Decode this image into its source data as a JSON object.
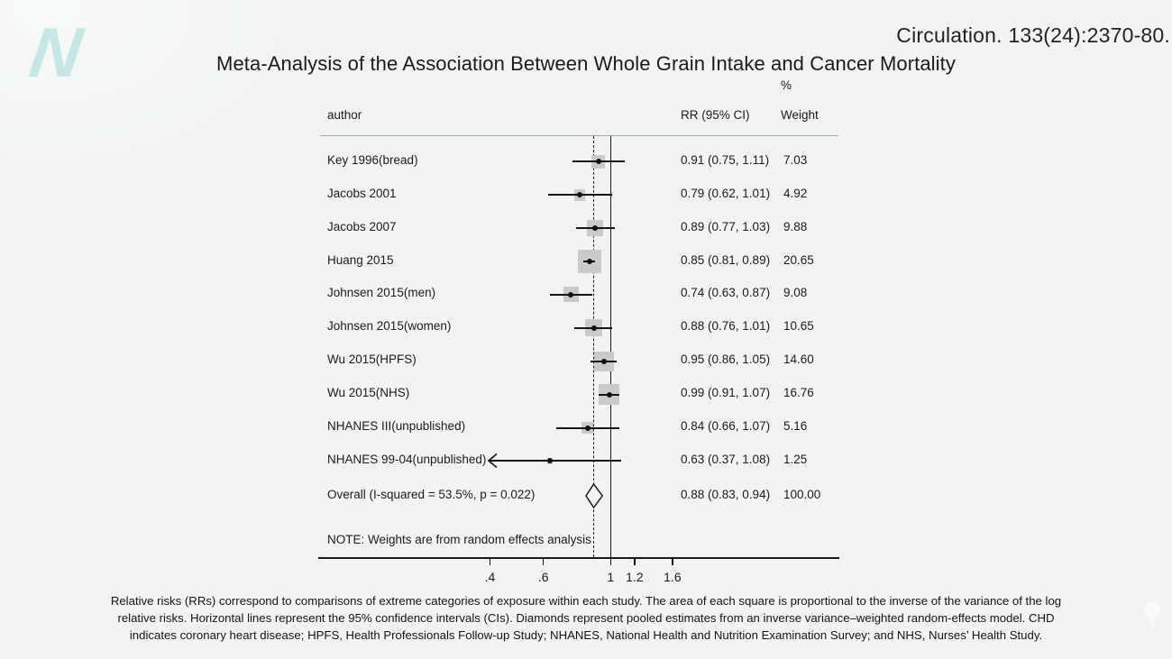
{
  "slide": {
    "citation": "Circulation. 133(24):2370-80.",
    "title": "Meta-Analysis of the Association Between Whole Grain Intake and Cancer Mortality"
  },
  "logo": {
    "letter": "N",
    "color": "#c6e7e6"
  },
  "chart_data": {
    "type": "scatter",
    "subtype": "forest-plot",
    "scale": "log",
    "columns": {
      "author": "author",
      "rr": "RR (95% CI)",
      "percent": "%",
      "weight": "Weight"
    },
    "x_ticks": [
      {
        "label": ".4",
        "value": 0.4
      },
      {
        "label": ".6",
        "value": 0.6
      },
      {
        "label": "1",
        "value": 1.0
      },
      {
        "label": "1.2",
        "value": 1.2
      },
      {
        "label": "1.6",
        "value": 1.6
      }
    ],
    "ref_line": 1.0,
    "pooled_dashed_line": 0.88,
    "studies": [
      {
        "label": "Key 1996(bread)",
        "rr": 0.91,
        "ci": [
          0.75,
          1.11
        ],
        "weight": 7.03,
        "rr_text": "0.91 (0.75, 1.11)",
        "weight_text": "7.03"
      },
      {
        "label": "Jacobs 2001",
        "rr": 0.79,
        "ci": [
          0.62,
          1.01
        ],
        "weight": 4.92,
        "rr_text": "0.79 (0.62, 1.01)",
        "weight_text": "4.92"
      },
      {
        "label": "Jacobs 2007",
        "rr": 0.89,
        "ci": [
          0.77,
          1.03
        ],
        "weight": 9.88,
        "rr_text": "0.89 (0.77, 1.03)",
        "weight_text": "9.88"
      },
      {
        "label": "Huang 2015",
        "rr": 0.85,
        "ci": [
          0.81,
          0.89
        ],
        "weight": 20.65,
        "rr_text": "0.85 (0.81, 0.89)",
        "weight_text": "20.65"
      },
      {
        "label": "Johnsen 2015(men)",
        "rr": 0.74,
        "ci": [
          0.63,
          0.87
        ],
        "weight": 9.08,
        "rr_text": "0.74 (0.63, 0.87)",
        "weight_text": "9.08"
      },
      {
        "label": "Johnsen 2015(women)",
        "rr": 0.88,
        "ci": [
          0.76,
          1.01
        ],
        "weight": 10.65,
        "rr_text": "0.88 (0.76, 1.01)",
        "weight_text": "10.65"
      },
      {
        "label": "Wu 2015(HPFS)",
        "rr": 0.95,
        "ci": [
          0.86,
          1.05
        ],
        "weight": 14.6,
        "rr_text": "0.95 (0.86, 1.05)",
        "weight_text": "14.60"
      },
      {
        "label": "Wu 2015(NHS)",
        "rr": 0.99,
        "ci": [
          0.91,
          1.07
        ],
        "weight": 16.76,
        "rr_text": "0.99 (0.91, 1.07)",
        "weight_text": "16.76"
      },
      {
        "label": "NHANES III(unpublished)",
        "rr": 0.84,
        "ci": [
          0.66,
          1.07
        ],
        "weight": 5.16,
        "rr_text": "0.84 (0.66, 1.07)",
        "weight_text": "5.16"
      },
      {
        "label": "NHANES 99-04(unpublished)",
        "rr": 0.63,
        "ci": [
          0.37,
          1.08
        ],
        "weight": 1.25,
        "rr_text": "0.63 (0.37, 1.08)",
        "weight_text": "1.25",
        "ci_clipped_left": true
      }
    ],
    "overall": {
      "label": "Overall  (I-squared = 53.5%, p = 0.022)",
      "rr": 0.88,
      "ci": [
        0.83,
        0.94
      ],
      "rr_text": "0.88 (0.83, 0.94)",
      "weight_text": "100.00"
    },
    "note": "NOTE: Weights are from random effects analysis"
  },
  "footer": {
    "lines": [
      "Relative risks (RRs) correspond to comparisons of extreme categories of exposure within each study. The area of each square is proportional to the inverse of the variance of the log",
      "relative risks. Horizontal lines represent the 95% confidence intervals (CIs). Diamonds represent pooled estimates from an inverse variance–weighted random-effects model. CHD",
      "indicates coronary heart disease; HPFS, Health Professionals Follow-up Study; NHANES, National Health and Nutrition Examination Survey; and NHS, Nurses’ Health Study."
    ]
  }
}
